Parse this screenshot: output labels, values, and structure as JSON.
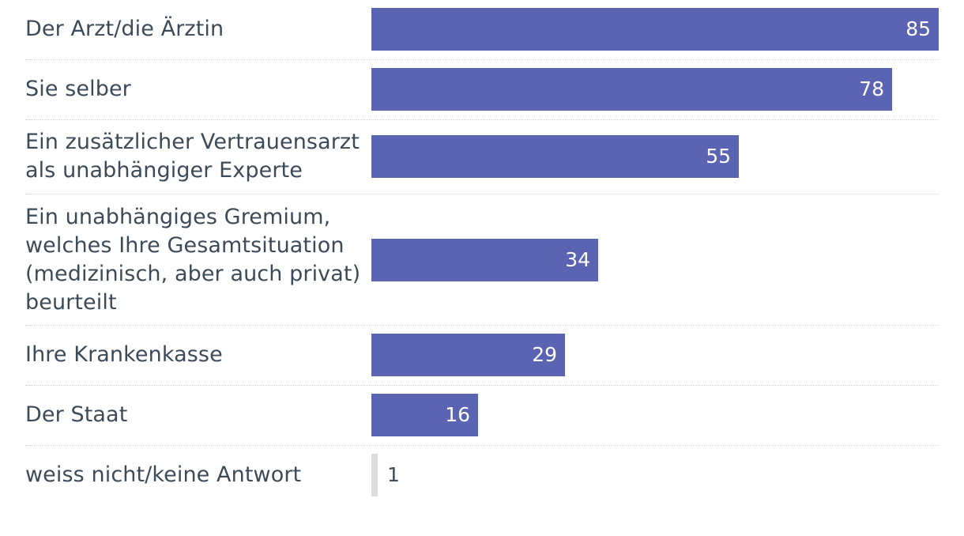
{
  "colors": {
    "bar": "#5b63b3",
    "bar_minor": "#dcdcdc",
    "label": "#3d4a57",
    "value_inside": "#ffffff",
    "value_outside": "#3d4a57"
  },
  "chart_data": {
    "type": "bar",
    "orientation": "horizontal",
    "categories": [
      "Der Arzt/die Ärztin",
      "Sie selber",
      "Ein zusätzlicher Vertrauensarzt als unabhängiger Experte",
      "Ein unabhängiges Gremium, welches Ihre Gesamtsituation (medizinisch, aber auch privat) beurteilt",
      "Ihre Krankenkasse",
      "Der Staat",
      "weiss nicht/keine Antwort"
    ],
    "values": [
      85,
      78,
      55,
      34,
      29,
      16,
      1
    ],
    "value_labels": [
      "85",
      "78",
      "55",
      "34",
      "29",
      "16",
      "1"
    ],
    "xlim": [
      0,
      85
    ],
    "grid": false,
    "legend": "none"
  }
}
